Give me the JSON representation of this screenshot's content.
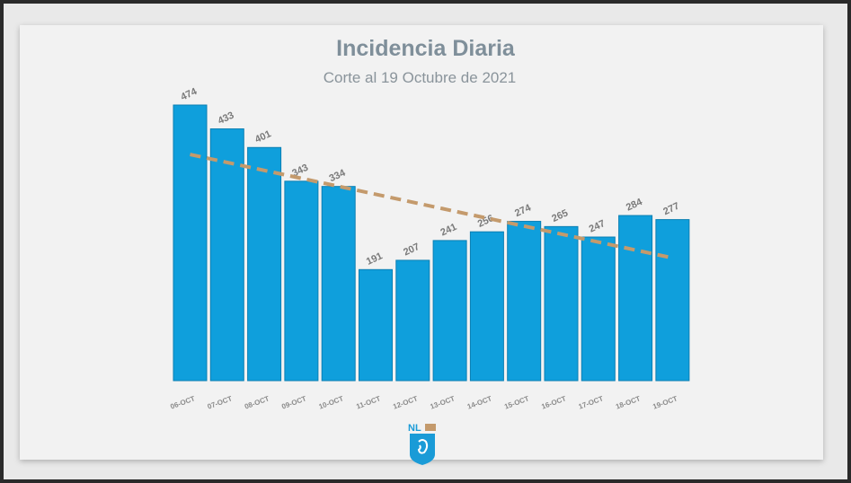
{
  "chart_data": {
    "type": "bar",
    "title": "Incidencia Diaria",
    "subtitle": "Corte al 19 Octubre de 2021",
    "categories": [
      "06-OCT",
      "07-OCT",
      "08-OCT",
      "09-OCT",
      "10-OCT",
      "11-OCT",
      "12-OCT",
      "13-OCT",
      "14-OCT",
      "15-OCT",
      "16-OCT",
      "17-OCT",
      "18-OCT",
      "19-OCT"
    ],
    "values": [
      474,
      433,
      401,
      343,
      334,
      191,
      207,
      241,
      256,
      274,
      265,
      247,
      284,
      277
    ],
    "trendline": {
      "type": "linear",
      "start": 389,
      "end": 211,
      "style": "dashed"
    },
    "ylim": [
      0,
      474
    ],
    "grid": false,
    "legend": "none",
    "colors": {
      "bar": "#0f9fdc",
      "trend": "#c49a6c",
      "label": "#7a7a7a",
      "title": "#7f8f9a"
    }
  },
  "logo": {
    "text": "NL",
    "icon": "nuevo-leon-shield-icon"
  }
}
